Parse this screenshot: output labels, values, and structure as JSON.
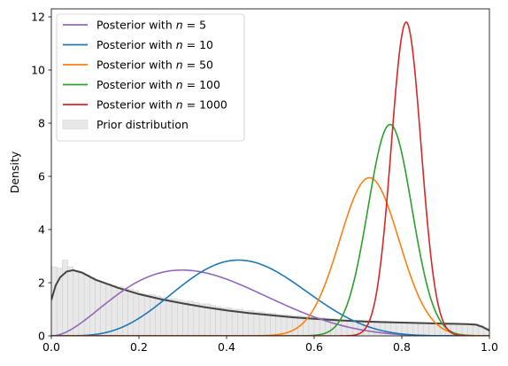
{
  "chart_data": {
    "type": "line",
    "title": "",
    "xlabel": "",
    "ylabel": "Density",
    "xlim": [
      0,
      1
    ],
    "ylim": [
      0,
      12.3
    ],
    "x_ticks": [
      0.0,
      0.2,
      0.4,
      0.6,
      0.8,
      1.0
    ],
    "x_tick_labels": [
      "0.0",
      "0.2",
      "0.4",
      "0.6",
      "0.8",
      "1.0"
    ],
    "y_ticks": [
      0,
      2,
      4,
      6,
      8,
      10,
      12
    ],
    "y_tick_labels": [
      "0",
      "2",
      "4",
      "6",
      "8",
      "10",
      "12"
    ],
    "grid": false,
    "legend_position": "top-left",
    "series": [
      {
        "name": "Posterior with n = 5",
        "color": "#9467bd",
        "shape": "beta",
        "alpha": 3.0,
        "beta": 5.7
      },
      {
        "name": "Posterior with n = 10",
        "color": "#1f77b4",
        "shape": "beta",
        "alpha": 5.7,
        "beta": 7.3
      },
      {
        "name": "Posterior with n = 50",
        "color": "#ff7f0e",
        "shape": "normal",
        "mean": 0.726,
        "sd": 0.0675,
        "peak": 5.95
      },
      {
        "name": "Posterior with n = 100",
        "color": "#2ca02c",
        "shape": "normal",
        "mean": 0.773,
        "sd": 0.05,
        "peak": 7.95
      },
      {
        "name": "Posterior with n = 1000",
        "color": "#d62728",
        "shape": "normal",
        "mean": 0.81,
        "sd": 0.034,
        "peak": 11.8
      }
    ],
    "prior": {
      "name": "Prior distribution",
      "bar_color": "#e8e8e8",
      "edge_color": "#cccccc",
      "kde_color": "#444444",
      "bin_width": 0.0125,
      "kde_points": [
        [
          0.0,
          1.35
        ],
        [
          0.01,
          1.9
        ],
        [
          0.02,
          2.2
        ],
        [
          0.035,
          2.42
        ],
        [
          0.05,
          2.47
        ],
        [
          0.07,
          2.38
        ],
        [
          0.1,
          2.12
        ],
        [
          0.15,
          1.82
        ],
        [
          0.2,
          1.57
        ],
        [
          0.25,
          1.38
        ],
        [
          0.3,
          1.22
        ],
        [
          0.35,
          1.08
        ],
        [
          0.4,
          0.96
        ],
        [
          0.45,
          0.86
        ],
        [
          0.5,
          0.78
        ],
        [
          0.55,
          0.7
        ],
        [
          0.6,
          0.64
        ],
        [
          0.65,
          0.59
        ],
        [
          0.7,
          0.55
        ],
        [
          0.75,
          0.52
        ],
        [
          0.8,
          0.5
        ],
        [
          0.85,
          0.48
        ],
        [
          0.9,
          0.46
        ],
        [
          0.95,
          0.44
        ],
        [
          0.97,
          0.42
        ],
        [
          0.985,
          0.33
        ],
        [
          1.0,
          0.2
        ]
      ],
      "bars": [
        2.6,
        2.55,
        2.85,
        2.6,
        2.45,
        2.4,
        2.3,
        2.2,
        2.05,
        2.0,
        1.95,
        1.9,
        1.85,
        1.8,
        1.75,
        1.7,
        1.6,
        1.55,
        1.55,
        1.5,
        1.45,
        1.4,
        1.4,
        1.35,
        1.3,
        1.3,
        1.25,
        1.2,
        1.2,
        1.15,
        1.1,
        1.05,
        1.05,
        1.0,
        1.0,
        0.95,
        0.95,
        0.9,
        0.9,
        0.85,
        0.85,
        0.8,
        0.8,
        0.78,
        0.75,
        0.75,
        0.72,
        0.7,
        0.7,
        0.68,
        0.65,
        0.65,
        0.62,
        0.6,
        0.6,
        0.58,
        0.58,
        0.56,
        0.55,
        0.55,
        0.54,
        0.53,
        0.52,
        0.52,
        0.51,
        0.5,
        0.5,
        0.49,
        0.49,
        0.48,
        0.48,
        0.47,
        0.47,
        0.46,
        0.46,
        0.45,
        0.45,
        0.44,
        0.4,
        0.3
      ]
    }
  }
}
